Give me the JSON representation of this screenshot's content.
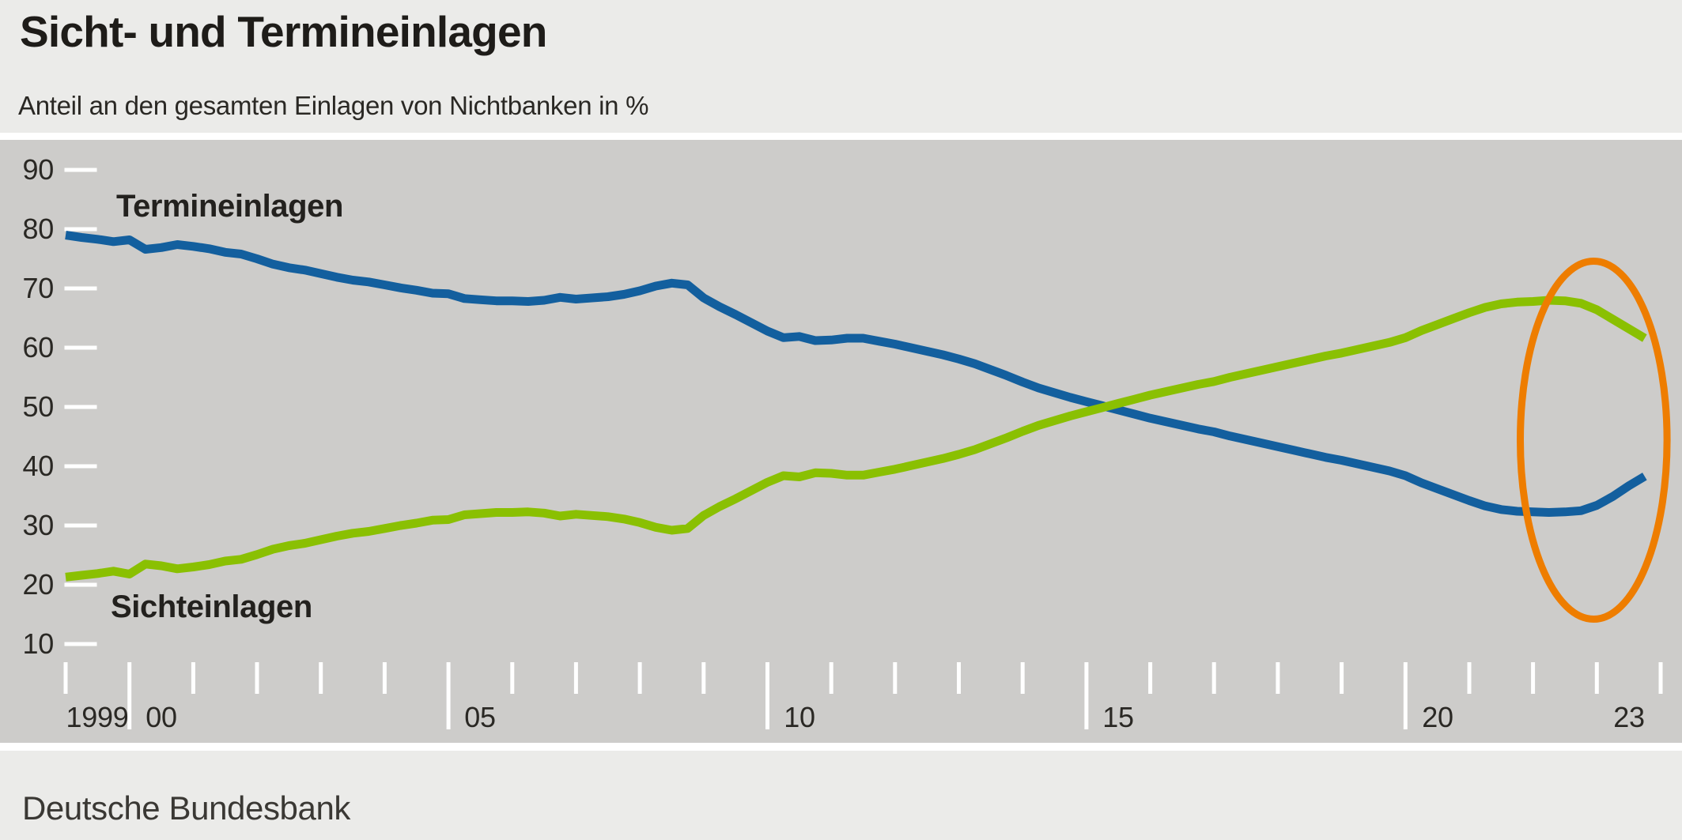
{
  "header": {
    "title": "Sicht- und Termineinlagen",
    "subtitle": "Anteil an den gesamten Einlagen von Nichtbanken in %"
  },
  "footer": {
    "source": "Deutsche Bundesbank"
  },
  "colors": {
    "band_background": "#ebebe9",
    "plot_background": "#cdccca",
    "tick_color": "#ffffff",
    "text_color": "#23211e",
    "blue_series": "#135f9e",
    "green_series": "#8ac002",
    "annotation_orange": "#ee7d00"
  },
  "chart_data": {
    "type": "line",
    "title": "Sicht- und Termineinlagen",
    "subtitle": "Anteil an den gesamten Einlagen von Nichtbanken in %",
    "unit": "%",
    "grid": false,
    "legend_position": "inline-labels-on-chart",
    "ylim": [
      10,
      90
    ],
    "yticks": [
      90,
      80,
      70,
      60,
      50,
      40,
      30,
      20,
      10
    ],
    "xlim": [
      1999,
      2024
    ],
    "xticks": {
      "from": 1999,
      "to": 2024,
      "step": 1
    },
    "xticks_major": [
      2000,
      2005,
      2010,
      2015,
      2020
    ],
    "xtick_labels": [
      {
        "text": "1999",
        "center_year": 1999.5
      },
      {
        "text": "00",
        "center_year": 2000.5
      },
      {
        "text": "05",
        "center_year": 2005.5
      },
      {
        "text": "10",
        "center_year": 2010.5
      },
      {
        "text": "15",
        "center_year": 2015.5
      },
      {
        "text": "20",
        "center_year": 2020.5
      },
      {
        "text": "23",
        "center_year": 2023.5
      }
    ],
    "x": [
      1999.0,
      1999.25,
      1999.5,
      1999.75,
      2000.0,
      2000.25,
      2000.5,
      2000.75,
      2001.0,
      2001.25,
      2001.5,
      2001.75,
      2002.0,
      2002.25,
      2002.5,
      2002.75,
      2003.0,
      2003.25,
      2003.5,
      2003.75,
      2004.0,
      2004.25,
      2004.5,
      2004.75,
      2005.0,
      2005.25,
      2005.5,
      2005.75,
      2006.0,
      2006.25,
      2006.5,
      2006.75,
      2007.0,
      2007.25,
      2007.5,
      2007.75,
      2008.0,
      2008.25,
      2008.5,
      2008.75,
      2009.0,
      2009.25,
      2009.5,
      2009.75,
      2010.0,
      2010.25,
      2010.5,
      2010.75,
      2011.0,
      2011.25,
      2011.5,
      2011.75,
      2012.0,
      2012.25,
      2012.5,
      2012.75,
      2013.0,
      2013.25,
      2013.5,
      2013.75,
      2014.0,
      2014.25,
      2014.5,
      2014.75,
      2015.0,
      2015.25,
      2015.5,
      2015.75,
      2016.0,
      2016.25,
      2016.5,
      2016.75,
      2017.0,
      2017.25,
      2017.5,
      2017.75,
      2018.0,
      2018.25,
      2018.5,
      2018.75,
      2019.0,
      2019.25,
      2019.5,
      2019.75,
      2020.0,
      2020.25,
      2020.5,
      2020.75,
      2021.0,
      2021.25,
      2021.5,
      2021.75,
      2022.0,
      2022.25,
      2022.5,
      2022.75,
      2023.0,
      2023.25,
      2023.5,
      2023.75
    ],
    "series": [
      {
        "name": "Termineinlagen",
        "color": "#135f9e",
        "values": [
          79.0,
          78.6,
          78.3,
          77.9,
          78.2,
          76.6,
          76.9,
          77.4,
          77.1,
          76.7,
          76.1,
          75.8,
          75.0,
          74.1,
          73.5,
          73.1,
          72.5,
          71.9,
          71.4,
          71.1,
          70.6,
          70.1,
          69.7,
          69.2,
          69.1,
          68.3,
          68.1,
          67.9,
          67.9,
          67.8,
          68.0,
          68.5,
          68.2,
          68.4,
          68.6,
          69.0,
          69.6,
          70.4,
          70.9,
          70.6,
          68.4,
          66.9,
          65.6,
          64.2,
          62.8,
          61.7,
          61.9,
          61.2,
          61.3,
          61.6,
          61.6,
          61.1,
          60.6,
          60.0,
          59.4,
          58.8,
          58.1,
          57.3,
          56.3,
          55.3,
          54.2,
          53.2,
          52.4,
          51.6,
          50.9,
          50.2,
          49.5,
          48.8,
          48.1,
          47.5,
          46.9,
          46.3,
          45.8,
          45.1,
          44.5,
          43.9,
          43.3,
          42.7,
          42.1,
          41.5,
          41.0,
          40.4,
          39.8,
          39.2,
          38.4,
          37.2,
          36.2,
          35.2,
          34.2,
          33.3,
          32.7,
          32.4,
          32.3,
          32.2,
          32.3,
          32.5,
          33.4,
          34.9,
          36.7,
          38.3
        ]
      },
      {
        "name": "Sichteinlagen",
        "color": "#8ac002",
        "values": [
          21.3,
          21.6,
          21.9,
          22.3,
          21.8,
          23.5,
          23.2,
          22.7,
          23.0,
          23.4,
          24.0,
          24.3,
          25.1,
          26.0,
          26.6,
          27.0,
          27.6,
          28.2,
          28.7,
          29.0,
          29.5,
          30.0,
          30.4,
          30.9,
          31.0,
          31.8,
          32.0,
          32.2,
          32.2,
          32.3,
          32.1,
          31.6,
          31.9,
          31.7,
          31.5,
          31.1,
          30.5,
          29.7,
          29.2,
          29.5,
          31.7,
          33.2,
          34.5,
          35.9,
          37.3,
          38.4,
          38.2,
          38.9,
          38.8,
          38.5,
          38.5,
          39.0,
          39.5,
          40.1,
          40.7,
          41.3,
          42.0,
          42.8,
          43.8,
          44.8,
          45.9,
          46.9,
          47.7,
          48.5,
          49.2,
          49.9,
          50.6,
          51.3,
          52.0,
          52.6,
          53.2,
          53.8,
          54.3,
          55.0,
          55.6,
          56.2,
          56.8,
          57.4,
          58.0,
          58.6,
          59.1,
          59.7,
          60.3,
          60.9,
          61.7,
          62.9,
          63.9,
          64.9,
          65.9,
          66.8,
          67.4,
          67.7,
          67.8,
          68.0,
          67.9,
          67.5,
          66.4,
          64.8,
          63.2,
          61.6
        ]
      }
    ],
    "annotation_ellipse": {
      "shape": "ellipse",
      "center_year": 2022.95,
      "center_value": 44.4,
      "rx_years": 1.15,
      "ry_values": 30.2,
      "stroke_width_px": 9,
      "color": "#ee7d00"
    }
  }
}
